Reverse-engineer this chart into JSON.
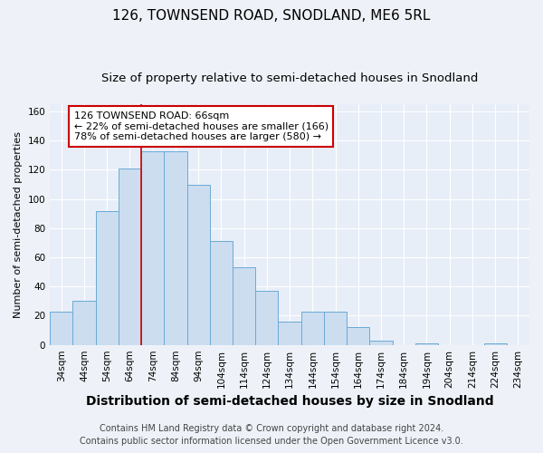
{
  "title": "126, TOWNSEND ROAD, SNODLAND, ME6 5RL",
  "subtitle": "Size of property relative to semi-detached houses in Snodland",
  "xlabel": "Distribution of semi-detached houses by size in Snodland",
  "ylabel": "Number of semi-detached properties",
  "footnote1": "Contains HM Land Registry data © Crown copyright and database right 2024.",
  "footnote2": "Contains public sector information licensed under the Open Government Licence v3.0.",
  "bar_labels": [
    "34sqm",
    "44sqm",
    "54sqm",
    "64sqm",
    "74sqm",
    "84sqm",
    "94sqm",
    "104sqm",
    "114sqm",
    "124sqm",
    "134sqm",
    "144sqm",
    "154sqm",
    "164sqm",
    "174sqm",
    "184sqm",
    "194sqm",
    "204sqm",
    "214sqm",
    "224sqm",
    "234sqm"
  ],
  "bar_values": [
    23,
    30,
    92,
    121,
    133,
    133,
    110,
    71,
    53,
    37,
    16,
    23,
    23,
    12,
    3,
    0,
    1,
    0,
    0,
    1,
    0
  ],
  "bar_color": "#ccddf0",
  "bar_edge_color": "#6aaad4",
  "vline_color": "#cc0000",
  "annotation_line1": "126 TOWNSEND ROAD: 66sqm",
  "annotation_line2": "← 22% of semi-detached houses are smaller (166)",
  "annotation_line3": "78% of semi-detached houses are larger (580) →",
  "annotation_box_color": "#ffffff",
  "annotation_box_edge": "#cc0000",
  "ylim": [
    0,
    165
  ],
  "yticks": [
    0,
    20,
    40,
    60,
    80,
    100,
    120,
    140,
    160
  ],
  "background_color": "#eef2f8",
  "plot_background": "#e8eef8",
  "grid_color": "#ffffff",
  "title_fontsize": 11,
  "subtitle_fontsize": 9.5,
  "xlabel_fontsize": 10,
  "ylabel_fontsize": 8,
  "tick_fontsize": 7.5,
  "annotation_fontsize": 8,
  "footnote_fontsize": 7
}
